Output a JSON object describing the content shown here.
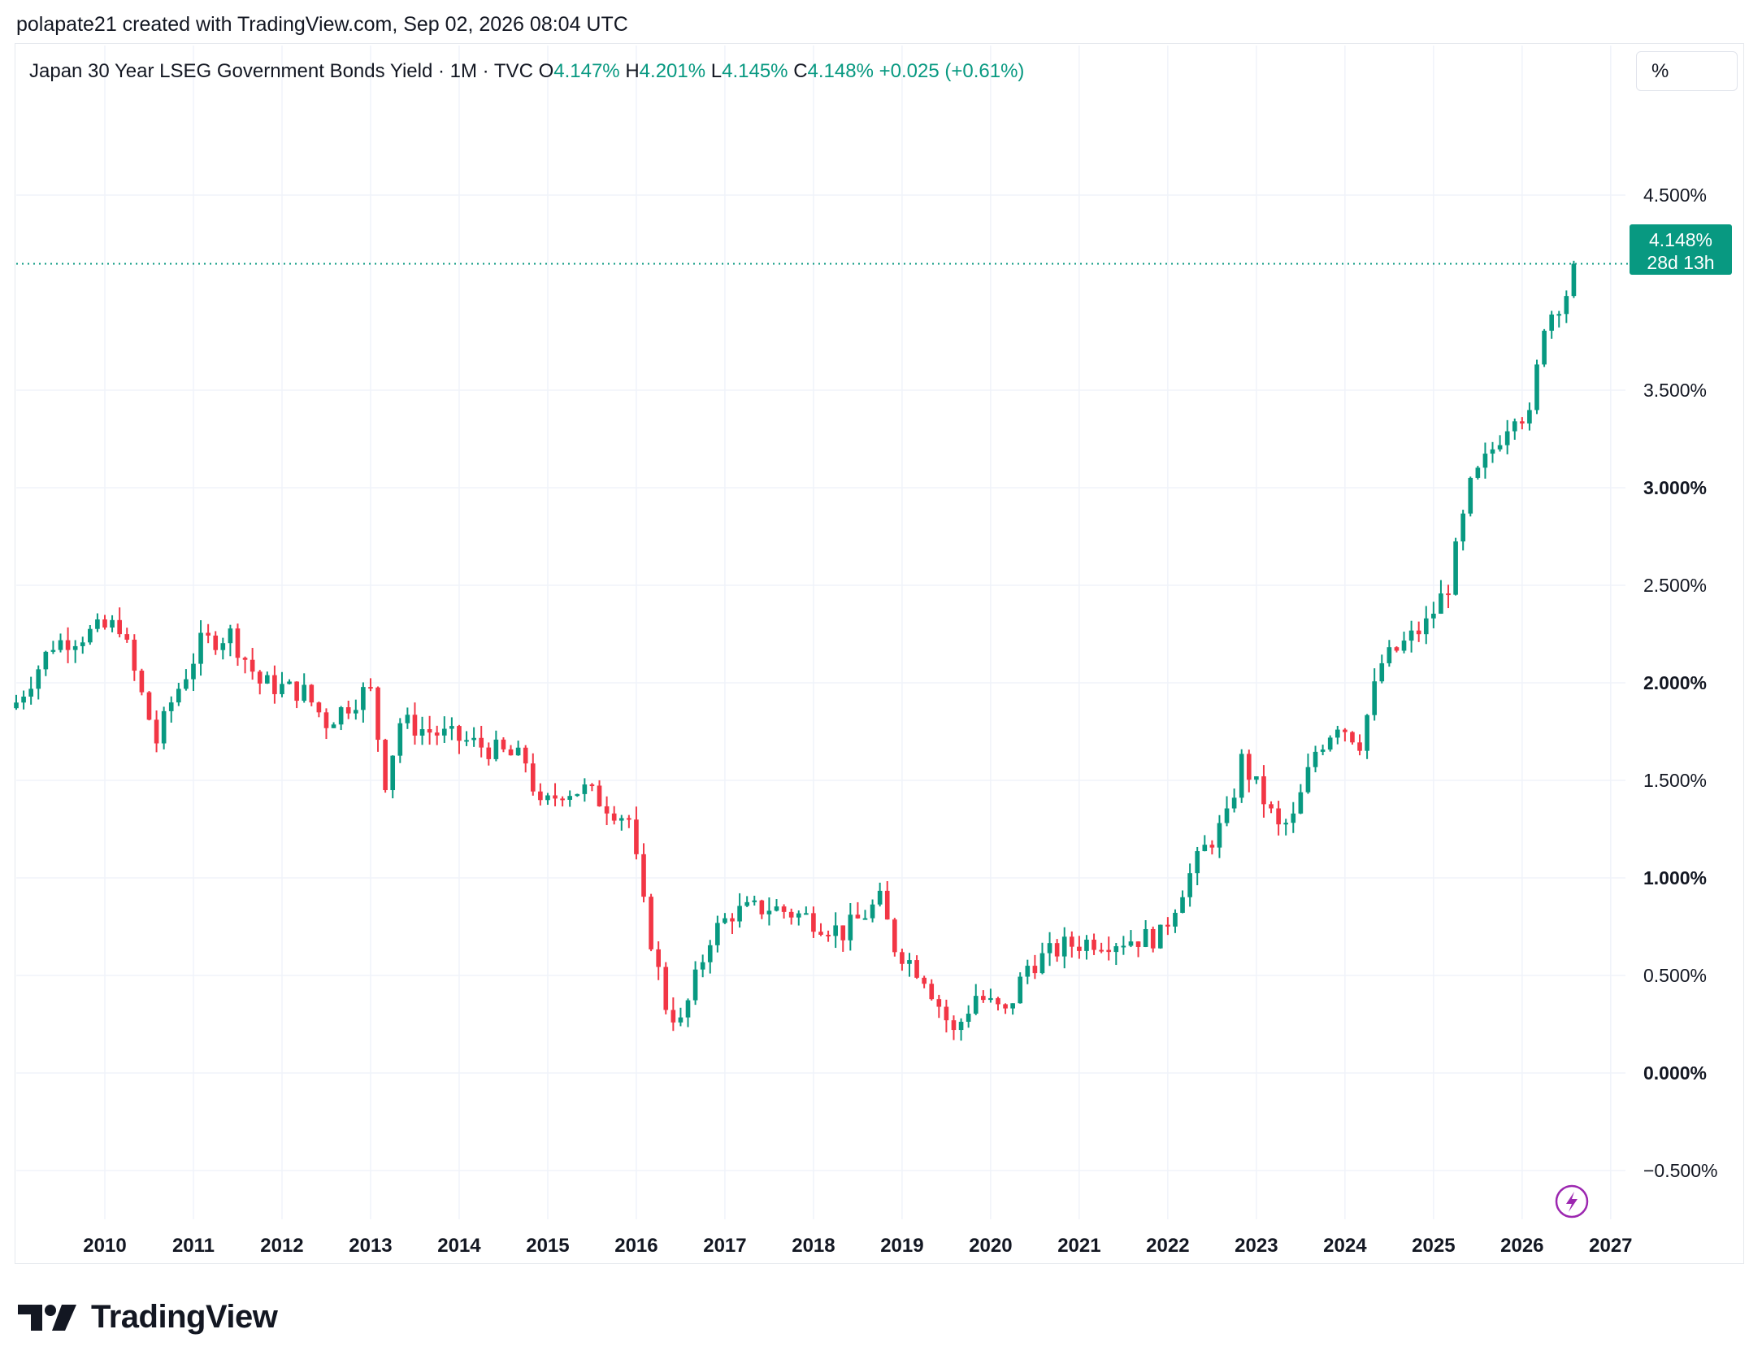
{
  "caption": "polapate21 created with TradingView.com, Sep 02, 2026 08:04 UTC",
  "legend": {
    "title": "Japan 30 Year LSEG Government Bonds Yield · 1M · TVC",
    "o_label": "O",
    "o_value": "4.147%",
    "h_label": "H",
    "h_value": "4.201%",
    "l_label": "L",
    "l_value": "4.145%",
    "c_label": "C",
    "c_value": "4.148%",
    "change": "+0.025 (+0.61%)"
  },
  "unit_button": "%",
  "price_tag": {
    "value": "4.148%",
    "countdown": "28d 13h"
  },
  "brand": "TradingView",
  "colors": {
    "up": "#089981",
    "down": "#f23645",
    "grid": "#f0f3fa",
    "text": "#131722",
    "accent_icon": "#9c27b0"
  },
  "icons": {
    "logo": "tradingview-logo-icon",
    "flash": "lightning-icon"
  },
  "chart_data": {
    "type": "candlestick",
    "title": "Japan 30 Year LSEG Government Bonds Yield",
    "interval": "1M",
    "y_unit": "%",
    "ylim": [
      -0.75,
      5.0
    ],
    "xlim": [
      "2009-01",
      "2027-03"
    ],
    "y_ticks": [
      "4.500%",
      "3.500%",
      "3.000%",
      "2.500%",
      "2.000%",
      "1.500%",
      "1.000%",
      "0.500%",
      "0.000%",
      "−0.500%"
    ],
    "y_tick_values": [
      4.5,
      3.5,
      3.0,
      2.5,
      2.0,
      1.5,
      1.0,
      0.5,
      0.0,
      -0.5
    ],
    "x_ticks": [
      "2010",
      "2011",
      "2012",
      "2013",
      "2014",
      "2015",
      "2016",
      "2017",
      "2018",
      "2019",
      "2020",
      "2021",
      "2022",
      "2023",
      "2024",
      "2025",
      "2026",
      "2027"
    ],
    "last_value": 4.148,
    "grid": true,
    "anchors": [
      [
        "2009-01",
        1.9
      ],
      [
        "2009-06",
        2.2
      ],
      [
        "2010-03",
        2.3
      ],
      [
        "2010-05",
        2.05
      ],
      [
        "2010-08",
        1.7
      ],
      [
        "2010-10",
        1.9
      ],
      [
        "2011-02",
        2.2
      ],
      [
        "2011-06",
        2.25
      ],
      [
        "2011-10",
        2.0
      ],
      [
        "2012-04",
        1.95
      ],
      [
        "2012-07",
        1.8
      ],
      [
        "2012-12",
        1.95
      ],
      [
        "2013-01",
        1.95
      ],
      [
        "2013-03",
        1.5
      ],
      [
        "2013-05",
        1.8
      ],
      [
        "2013-09",
        1.75
      ],
      [
        "2014-02",
        1.7
      ],
      [
        "2014-10",
        1.6
      ],
      [
        "2014-12",
        1.35
      ],
      [
        "2015-03",
        1.45
      ],
      [
        "2015-06",
        1.45
      ],
      [
        "2015-12",
        1.3
      ],
      [
        "2016-02",
        0.85
      ],
      [
        "2016-05",
        0.35
      ],
      [
        "2016-07",
        0.25
      ],
      [
        "2016-11",
        0.7
      ],
      [
        "2017-02",
        0.82
      ],
      [
        "2017-07",
        0.85
      ],
      [
        "2017-12",
        0.8
      ],
      [
        "2018-05",
        0.72
      ],
      [
        "2018-10",
        0.88
      ],
      [
        "2018-12",
        0.65
      ],
      [
        "2019-04",
        0.5
      ],
      [
        "2019-08",
        0.2
      ],
      [
        "2019-11",
        0.4
      ],
      [
        "2020-03",
        0.3
      ],
      [
        "2020-06",
        0.55
      ],
      [
        "2020-11",
        0.65
      ],
      [
        "2021-03",
        0.68
      ],
      [
        "2021-06",
        0.68
      ],
      [
        "2021-12",
        0.7
      ],
      [
        "2022-03",
        0.95
      ],
      [
        "2022-06",
        1.15
      ],
      [
        "2022-09",
        1.3
      ],
      [
        "2022-11",
        1.6
      ],
      [
        "2023-02",
        1.4
      ],
      [
        "2023-04",
        1.25
      ],
      [
        "2023-06",
        1.3
      ],
      [
        "2023-09",
        1.65
      ],
      [
        "2023-12",
        1.8
      ],
      [
        "2024-03",
        1.7
      ],
      [
        "2024-06",
        2.1
      ],
      [
        "2024-09",
        2.2
      ],
      [
        "2024-12",
        2.3
      ],
      [
        "2025-03",
        2.5
      ],
      [
        "2025-06",
        3.0
      ],
      [
        "2025-09",
        3.2
      ],
      [
        "2025-12",
        3.4
      ],
      [
        "2026-02",
        3.35
      ],
      [
        "2026-04",
        3.85
      ],
      [
        "2026-07",
        4.0
      ],
      [
        "2026-08",
        4.148
      ]
    ]
  }
}
